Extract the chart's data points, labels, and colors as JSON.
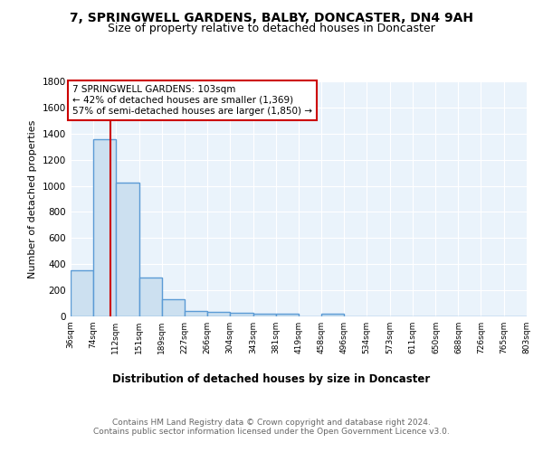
{
  "title1": "7, SPRINGWELL GARDENS, BALBY, DONCASTER, DN4 9AH",
  "title2": "Size of property relative to detached houses in Doncaster",
  "xlabel": "Distribution of detached houses by size in Doncaster",
  "ylabel": "Number of detached properties",
  "bin_edges": [
    36,
    74,
    112,
    151,
    189,
    227,
    266,
    304,
    343,
    381,
    419,
    458,
    496,
    534,
    573,
    611,
    650,
    688,
    726,
    765,
    803
  ],
  "bar_heights": [
    350,
    1360,
    1025,
    295,
    130,
    40,
    38,
    30,
    20,
    18,
    0,
    18,
    0,
    0,
    0,
    0,
    0,
    0,
    0,
    0
  ],
  "bar_color": "#cce0f0",
  "bar_edge_color": "#5b9bd5",
  "bar_edge_width": 1.0,
  "bg_color": "#eaf3fb",
  "grid_color": "#ffffff",
  "property_size": 103,
  "red_line_color": "#cc0000",
  "annotation_line1": "7 SPRINGWELL GARDENS: 103sqm",
  "annotation_line2": "← 42% of detached houses are smaller (1,369)",
  "annotation_line3": "57% of semi-detached houses are larger (1,850) →",
  "annotation_box_color": "#ffffff",
  "annotation_border_color": "#cc0000",
  "ylim": [
    0,
    1800
  ],
  "yticks": [
    0,
    200,
    400,
    600,
    800,
    1000,
    1200,
    1400,
    1600,
    1800
  ],
  "tick_labels": [
    "36sqm",
    "74sqm",
    "112sqm",
    "151sqm",
    "189sqm",
    "227sqm",
    "266sqm",
    "304sqm",
    "343sqm",
    "381sqm",
    "419sqm",
    "458sqm",
    "496sqm",
    "534sqm",
    "573sqm",
    "611sqm",
    "650sqm",
    "688sqm",
    "726sqm",
    "765sqm",
    "803sqm"
  ],
  "footer_text": "Contains HM Land Registry data © Crown copyright and database right 2024.\nContains public sector information licensed under the Open Government Licence v3.0.",
  "title1_fontsize": 10,
  "title2_fontsize": 9,
  "xlabel_fontsize": 8.5,
  "ylabel_fontsize": 8,
  "annotation_fontsize": 7.5,
  "footer_fontsize": 6.5
}
